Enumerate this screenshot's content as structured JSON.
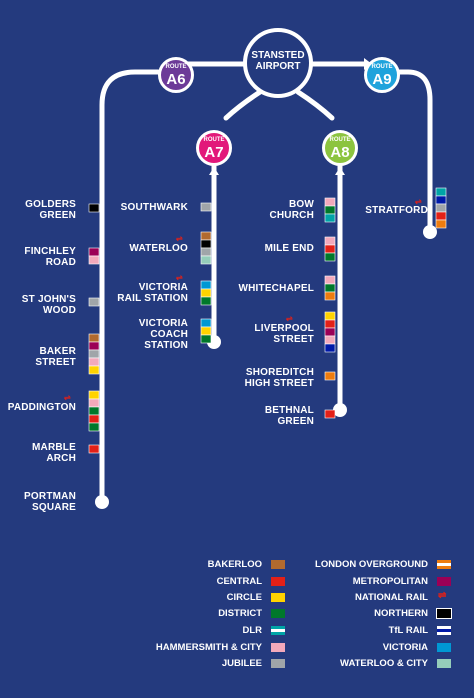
{
  "hub": {
    "line1": "STANSTED",
    "line2": "AIRPORT"
  },
  "routes": {
    "a6": {
      "small": "ROUTE",
      "big": "A6",
      "color": "#6c3a98"
    },
    "a7": {
      "small": "ROUTE",
      "big": "A7",
      "color": "#e2187a"
    },
    "a8": {
      "small": "ROUTE",
      "big": "A8",
      "color": "#8cc43f"
    },
    "a9": {
      "small": "ROUTE",
      "big": "A9",
      "color": "#1fa3dc"
    }
  },
  "stops": {
    "golders_green": "GOLDERS\nGREEN",
    "finchley_road": "FINCHLEY\nROAD",
    "st_johns_wood": "ST JOHN'S\nWOOD",
    "baker_street": "BAKER\nSTREET",
    "paddington": "PADDINGTON",
    "marble_arch": "MARBLE\nARCH",
    "portman_square": "PORTMAN\nSQUARE",
    "southwark": "SOUTHWARK",
    "waterloo": "WATERLOO",
    "victoria_rail": "VICTORIA\nRAIL STATION",
    "victoria_coach": "VICTORIA\nCOACH\nSTATION",
    "bow_church": "BOW\nCHURCH",
    "mile_end": "MILE END",
    "whitechapel": "WHITECHAPEL",
    "liverpool_street": "LIVERPOOL\nSTREET",
    "shoreditch": "SHOREDITCH\nHIGH STREET",
    "bethnal_green": "BETHNAL\nGREEN",
    "stratford": "STRATFORD"
  },
  "legend": {
    "bakerloo": {
      "label": "BAKERLOO",
      "color": "#b26a2e"
    },
    "central": {
      "label": "CENTRAL",
      "color": "#e32017"
    },
    "circle": {
      "label": "CIRCLE",
      "color": "#ffd300"
    },
    "district": {
      "label": "DISTRICT",
      "color": "#00782a"
    },
    "dlr": {
      "label": "DLR",
      "color": "#00a4a7"
    },
    "hammersmith": {
      "label": "HAMMERSMITH & CITY",
      "color": "#f3a9bb"
    },
    "jubilee": {
      "label": "JUBILEE",
      "color": "#a0a5a9"
    },
    "overground": {
      "label": "LONDON OVERGROUND",
      "color": "#ee7c0e"
    },
    "metropolitan": {
      "label": "METROPOLITAN",
      "color": "#9b0056"
    },
    "national_rail": {
      "label": "NATIONAL RAIL",
      "color": "#e32017"
    },
    "northern": {
      "label": "NORTHERN",
      "color": "#000000"
    },
    "tfl_rail": {
      "label": "TfL RAIL",
      "color": "#0019a8"
    },
    "victoria": {
      "label": "VICTORIA",
      "color": "#0098d4"
    },
    "waterloo_city": {
      "label": "WATERLOO & CITY",
      "color": "#95cdba"
    }
  }
}
